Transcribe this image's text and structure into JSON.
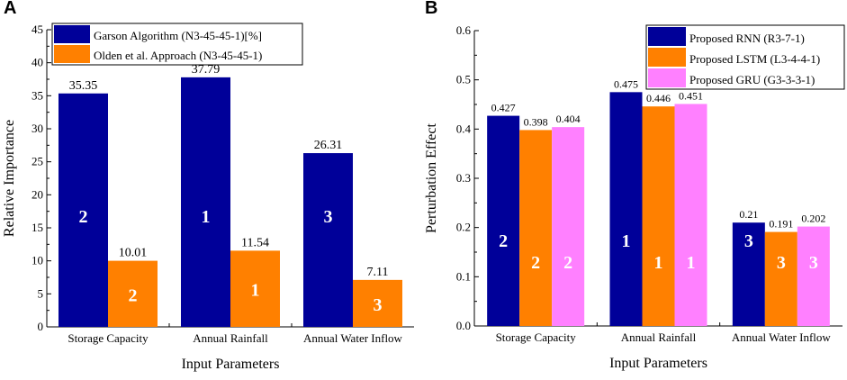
{
  "figure": {
    "panel_a_letter": "A",
    "panel_b_letter": "B"
  },
  "chart_data": [
    {
      "type": "bar",
      "panel": "A",
      "title": "",
      "xlabel": "Input Parameters",
      "ylabel": "Relative Importance",
      "ylim": [
        0,
        45
      ],
      "yticks": [
        "0",
        "5",
        "10",
        "15",
        "20",
        "25",
        "30",
        "35",
        "40",
        "45"
      ],
      "categories": [
        "Storage Capacity",
        "Annual Rainfall",
        "Annual Water Inflow"
      ],
      "series": [
        {
          "name": "Garson Algorithm (N3-45-45-1)[%]",
          "color": "#000099",
          "values": [
            35.35,
            37.79,
            26.31
          ],
          "labels": [
            "35.35",
            "37.79",
            "26.31"
          ],
          "ranks": [
            "2",
            "1",
            "3"
          ]
        },
        {
          "name": "Olden et al. Approach (N3-45-45-1)",
          "color": "#FF8000",
          "values": [
            10.01,
            11.54,
            7.11
          ],
          "labels": [
            "10.01",
            "11.54",
            "7.11"
          ],
          "ranks": [
            "2",
            "1",
            "3"
          ]
        }
      ],
      "legend": "top-left",
      "grid": false
    },
    {
      "type": "bar",
      "panel": "B",
      "title": "",
      "xlabel": "Input Parameters",
      "ylabel": "Perturbation Effect",
      "ylim": [
        0,
        0.6
      ],
      "yticks": [
        "0.0",
        "0.1",
        "0.2",
        "0.3",
        "0.4",
        "0.5",
        "0.6"
      ],
      "categories": [
        "Storage Capacity",
        "Annual Rainfall",
        "Annual Water Inflow"
      ],
      "series": [
        {
          "name": "Proposed RNN (R3-7-1)",
          "color": "#000099",
          "values": [
            0.427,
            0.475,
            0.21
          ],
          "labels": [
            "0.427",
            "0.475",
            "0.21"
          ],
          "ranks": [
            "2",
            "1",
            "3"
          ]
        },
        {
          "name": "Proposed LSTM (L3-4-4-1)",
          "color": "#FF8000",
          "values": [
            0.398,
            0.446,
            0.191
          ],
          "labels": [
            "0.398",
            "0.446",
            "0.191"
          ],
          "ranks": [
            "2",
            "1",
            "3"
          ]
        },
        {
          "name": "Proposed GRU (G3-3-3-1)",
          "color": "#FF80FF",
          "values": [
            0.404,
            0.451,
            0.202
          ],
          "labels": [
            "0.404",
            "0.451",
            "0.202"
          ],
          "ranks": [
            "2",
            "1",
            "3"
          ]
        }
      ],
      "legend": "top-right",
      "grid": false
    }
  ]
}
